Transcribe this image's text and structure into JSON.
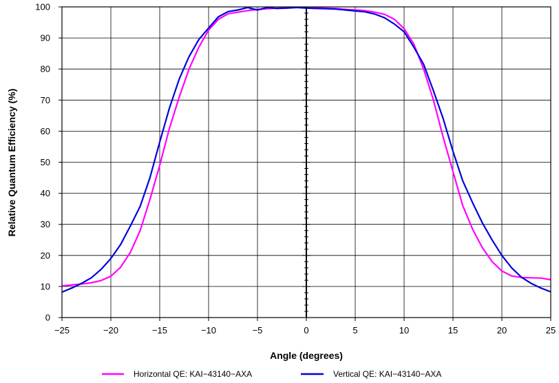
{
  "chart_data": {
    "type": "line",
    "title": "",
    "xlabel": "Angle (degrees)",
    "ylabel": "Relative Quantum Efficiency (%)",
    "xlim": [
      -25,
      25
    ],
    "ylim": [
      0,
      100
    ],
    "xticks": [
      -25,
      -20,
      -15,
      -10,
      -5,
      0,
      5,
      10,
      15,
      20,
      25
    ],
    "yticks": [
      0,
      10,
      20,
      30,
      40,
      50,
      60,
      70,
      80,
      90,
      100
    ],
    "xtick_labels": [
      "−25",
      "−20",
      "−15",
      "−10",
      "−5",
      "0",
      "5",
      "10",
      "15",
      "20",
      "25"
    ],
    "ytick_labels": [
      "0",
      "10",
      "20",
      "30",
      "40",
      "50",
      "60",
      "70",
      "80",
      "90",
      "100"
    ],
    "grid": true,
    "legend_position": "bottom",
    "series": [
      {
        "name": "Horizontal QE: KAI−43140−AXA",
        "color": "#ff00ff",
        "x": [
          -25,
          -24,
          -23,
          -22,
          -21,
          -20,
          -19,
          -18,
          -17,
          -16,
          -15,
          -14,
          -13,
          -12,
          -11,
          -10,
          -9,
          -8,
          -7,
          -6,
          -5,
          -4,
          -3,
          -2,
          -1,
          0,
          1,
          2,
          3,
          4,
          5,
          6,
          7,
          8,
          9,
          10,
          11,
          12,
          13,
          14,
          15,
          16,
          17,
          18,
          19,
          20,
          21,
          22,
          23,
          24,
          25
        ],
        "y": [
          10.2,
          10.5,
          10.8,
          11.2,
          11.9,
          13.3,
          16.2,
          21.0,
          28.0,
          38.0,
          49.0,
          61.0,
          71.0,
          80.0,
          87.0,
          92.5,
          96.0,
          97.8,
          98.3,
          98.8,
          99.2,
          99.4,
          99.6,
          99.7,
          99.8,
          99.8,
          99.7,
          99.6,
          99.5,
          99.2,
          99.0,
          98.8,
          98.3,
          97.6,
          96.0,
          93.0,
          88.0,
          80.0,
          70.0,
          58.0,
          47.0,
          36.0,
          28.5,
          22.5,
          18.0,
          15.0,
          13.4,
          12.9,
          12.8,
          12.7,
          12.2
        ]
      },
      {
        "name": "Vertical QE: KAI−43140−AXA",
        "color": "#0000dd",
        "x": [
          -25,
          -24,
          -23,
          -22,
          -21,
          -20,
          -19,
          -18,
          -17,
          -16,
          -15,
          -14,
          -13,
          -12,
          -11,
          -10,
          -9,
          -8,
          -7,
          -6,
          -5,
          -4,
          -3,
          -2,
          -1,
          0,
          1,
          2,
          3,
          4,
          5,
          6,
          7,
          8,
          9,
          10,
          11,
          12,
          13,
          14,
          15,
          16,
          17,
          18,
          19,
          20,
          21,
          22,
          23,
          24,
          25
        ],
        "y": [
          8.2,
          9.5,
          11.0,
          12.8,
          15.5,
          19.0,
          23.5,
          29.5,
          35.8,
          45.0,
          56.5,
          67.5,
          76.8,
          84.0,
          89.5,
          93.2,
          96.8,
          98.5,
          99.0,
          99.8,
          99.0,
          99.8,
          99.5,
          99.6,
          99.8,
          99.6,
          99.5,
          99.4,
          99.3,
          99.0,
          98.7,
          98.4,
          97.7,
          96.5,
          94.5,
          92.0,
          87.0,
          81.5,
          73.0,
          64.0,
          53.5,
          44.0,
          37.0,
          30.5,
          25.0,
          20.0,
          16.0,
          13.0,
          11.0,
          9.5,
          8.3
        ]
      }
    ]
  }
}
